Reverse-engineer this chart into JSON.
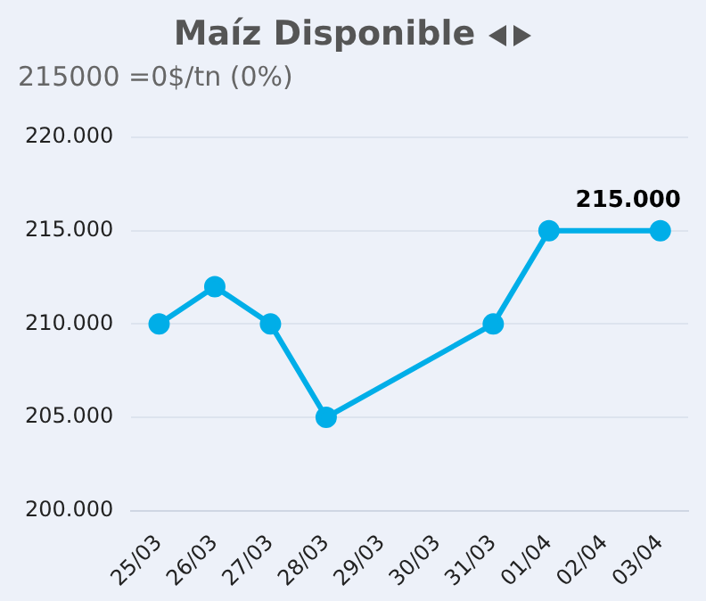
{
  "chart_data": {
    "type": "line",
    "title": "Maíz Disponible",
    "subtitle": "215000 =0$/tn (0%)",
    "categories": [
      "25/03",
      "26/03",
      "27/03",
      "28/03",
      "29/03",
      "30/03",
      "31/03",
      "01/04",
      "02/04",
      "03/04"
    ],
    "series": [
      {
        "color": "#00aee8",
        "values": [
          210000,
          212000,
          210000,
          205000,
          null,
          null,
          210000,
          215000,
          null,
          215000
        ],
        "value_labels": [
          null,
          null,
          null,
          null,
          null,
          null,
          null,
          null,
          null,
          "215.000"
        ]
      }
    ],
    "ylim": [
      200000,
      220000
    ],
    "yticks": [
      {
        "value": 200000,
        "label": "200.000"
      },
      {
        "value": 205000,
        "label": "205.000"
      },
      {
        "value": 210000,
        "label": "210.000"
      },
      {
        "value": 215000,
        "label": "215.000"
      },
      {
        "value": 220000,
        "label": "220.000"
      }
    ],
    "grid": "y",
    "legend": false,
    "marker": "circle",
    "line_style": "solid"
  }
}
